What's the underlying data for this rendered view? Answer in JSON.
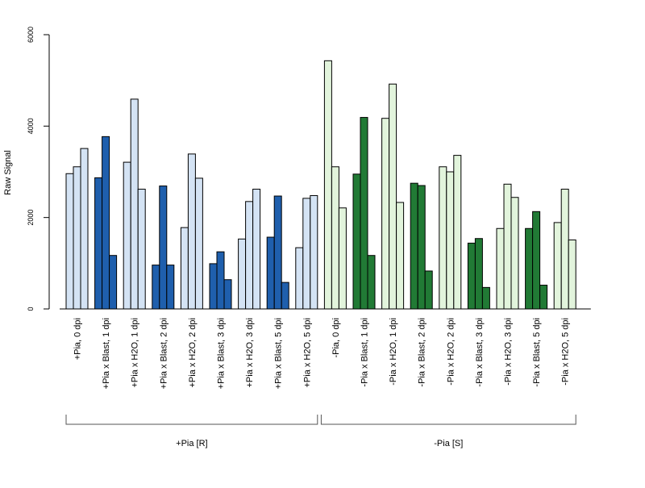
{
  "chart_data": {
    "type": "bar",
    "ylabel": "Raw Signal",
    "ylim": [
      0,
      6000
    ],
    "yticks": [
      "0",
      "2000",
      "4000",
      "6000"
    ],
    "bars_per_group": 3,
    "categories": [
      "+Pia, 0 dpi",
      "+Pia x Blast, 1 dpi",
      "+Pia x H2O, 1 dpi",
      "+Pia x Blast, 2 dpi",
      "+Pia x H2O, 2 dpi",
      "+Pia x Blast, 3 dpi",
      "+Pia x H2O, 3 dpi",
      "+Pia x Blast, 5 dpi",
      "+Pia x H2O, 5 dpi",
      "-Pia, 0 dpi",
      "-Pia x Blast, 1 dpi",
      "-Pia x H2O, 1 dpi",
      "-Pia x Blast, 2 dpi",
      "-Pia x H2O, 2 dpi",
      "-Pia x Blast, 3 dpi",
      "-Pia x H2O, 3 dpi",
      "-Pia x Blast, 5 dpi",
      "-Pia x H2O, 5 dpi"
    ],
    "values": [
      [
        2960,
        3110,
        3510
      ],
      [
        2870,
        3770,
        1170
      ],
      [
        3210,
        4590,
        2620
      ],
      [
        960,
        2690,
        960
      ],
      [
        1780,
        3390,
        2860
      ],
      [
        990,
        1250,
        640
      ],
      [
        1530,
        2350,
        2620
      ],
      [
        1570,
        2470,
        580
      ],
      [
        1340,
        2420,
        2480
      ],
      [
        5430,
        3110,
        2210
      ],
      [
        2950,
        4190,
        1170
      ],
      [
        4170,
        4920,
        2330
      ],
      [
        2750,
        2700,
        830
      ],
      [
        3110,
        3000,
        3360
      ],
      [
        1440,
        1540,
        470
      ],
      [
        1760,
        2730,
        2440
      ],
      [
        1760,
        2130,
        520
      ],
      [
        1890,
        2620,
        1510
      ]
    ],
    "bar_colors": [
      "#d4e3f4",
      "#1f5fad",
      "#d4e3f4",
      "#1f5fad",
      "#d4e3f4",
      "#1f5fad",
      "#d4e3f4",
      "#1f5fad",
      "#d4e3f4",
      "#e2f4dc",
      "#217a35",
      "#e2f4dc",
      "#217a35",
      "#e2f4dc",
      "#217a35",
      "#e2f4dc",
      "#217a35",
      "#e2f4dc"
    ],
    "groups": [
      {
        "label": "+Pia [R]",
        "from": 0,
        "to": 8
      },
      {
        "label": "-Pia [S]",
        "from": 9,
        "to": 17
      }
    ],
    "grid": false,
    "legend": "none"
  }
}
